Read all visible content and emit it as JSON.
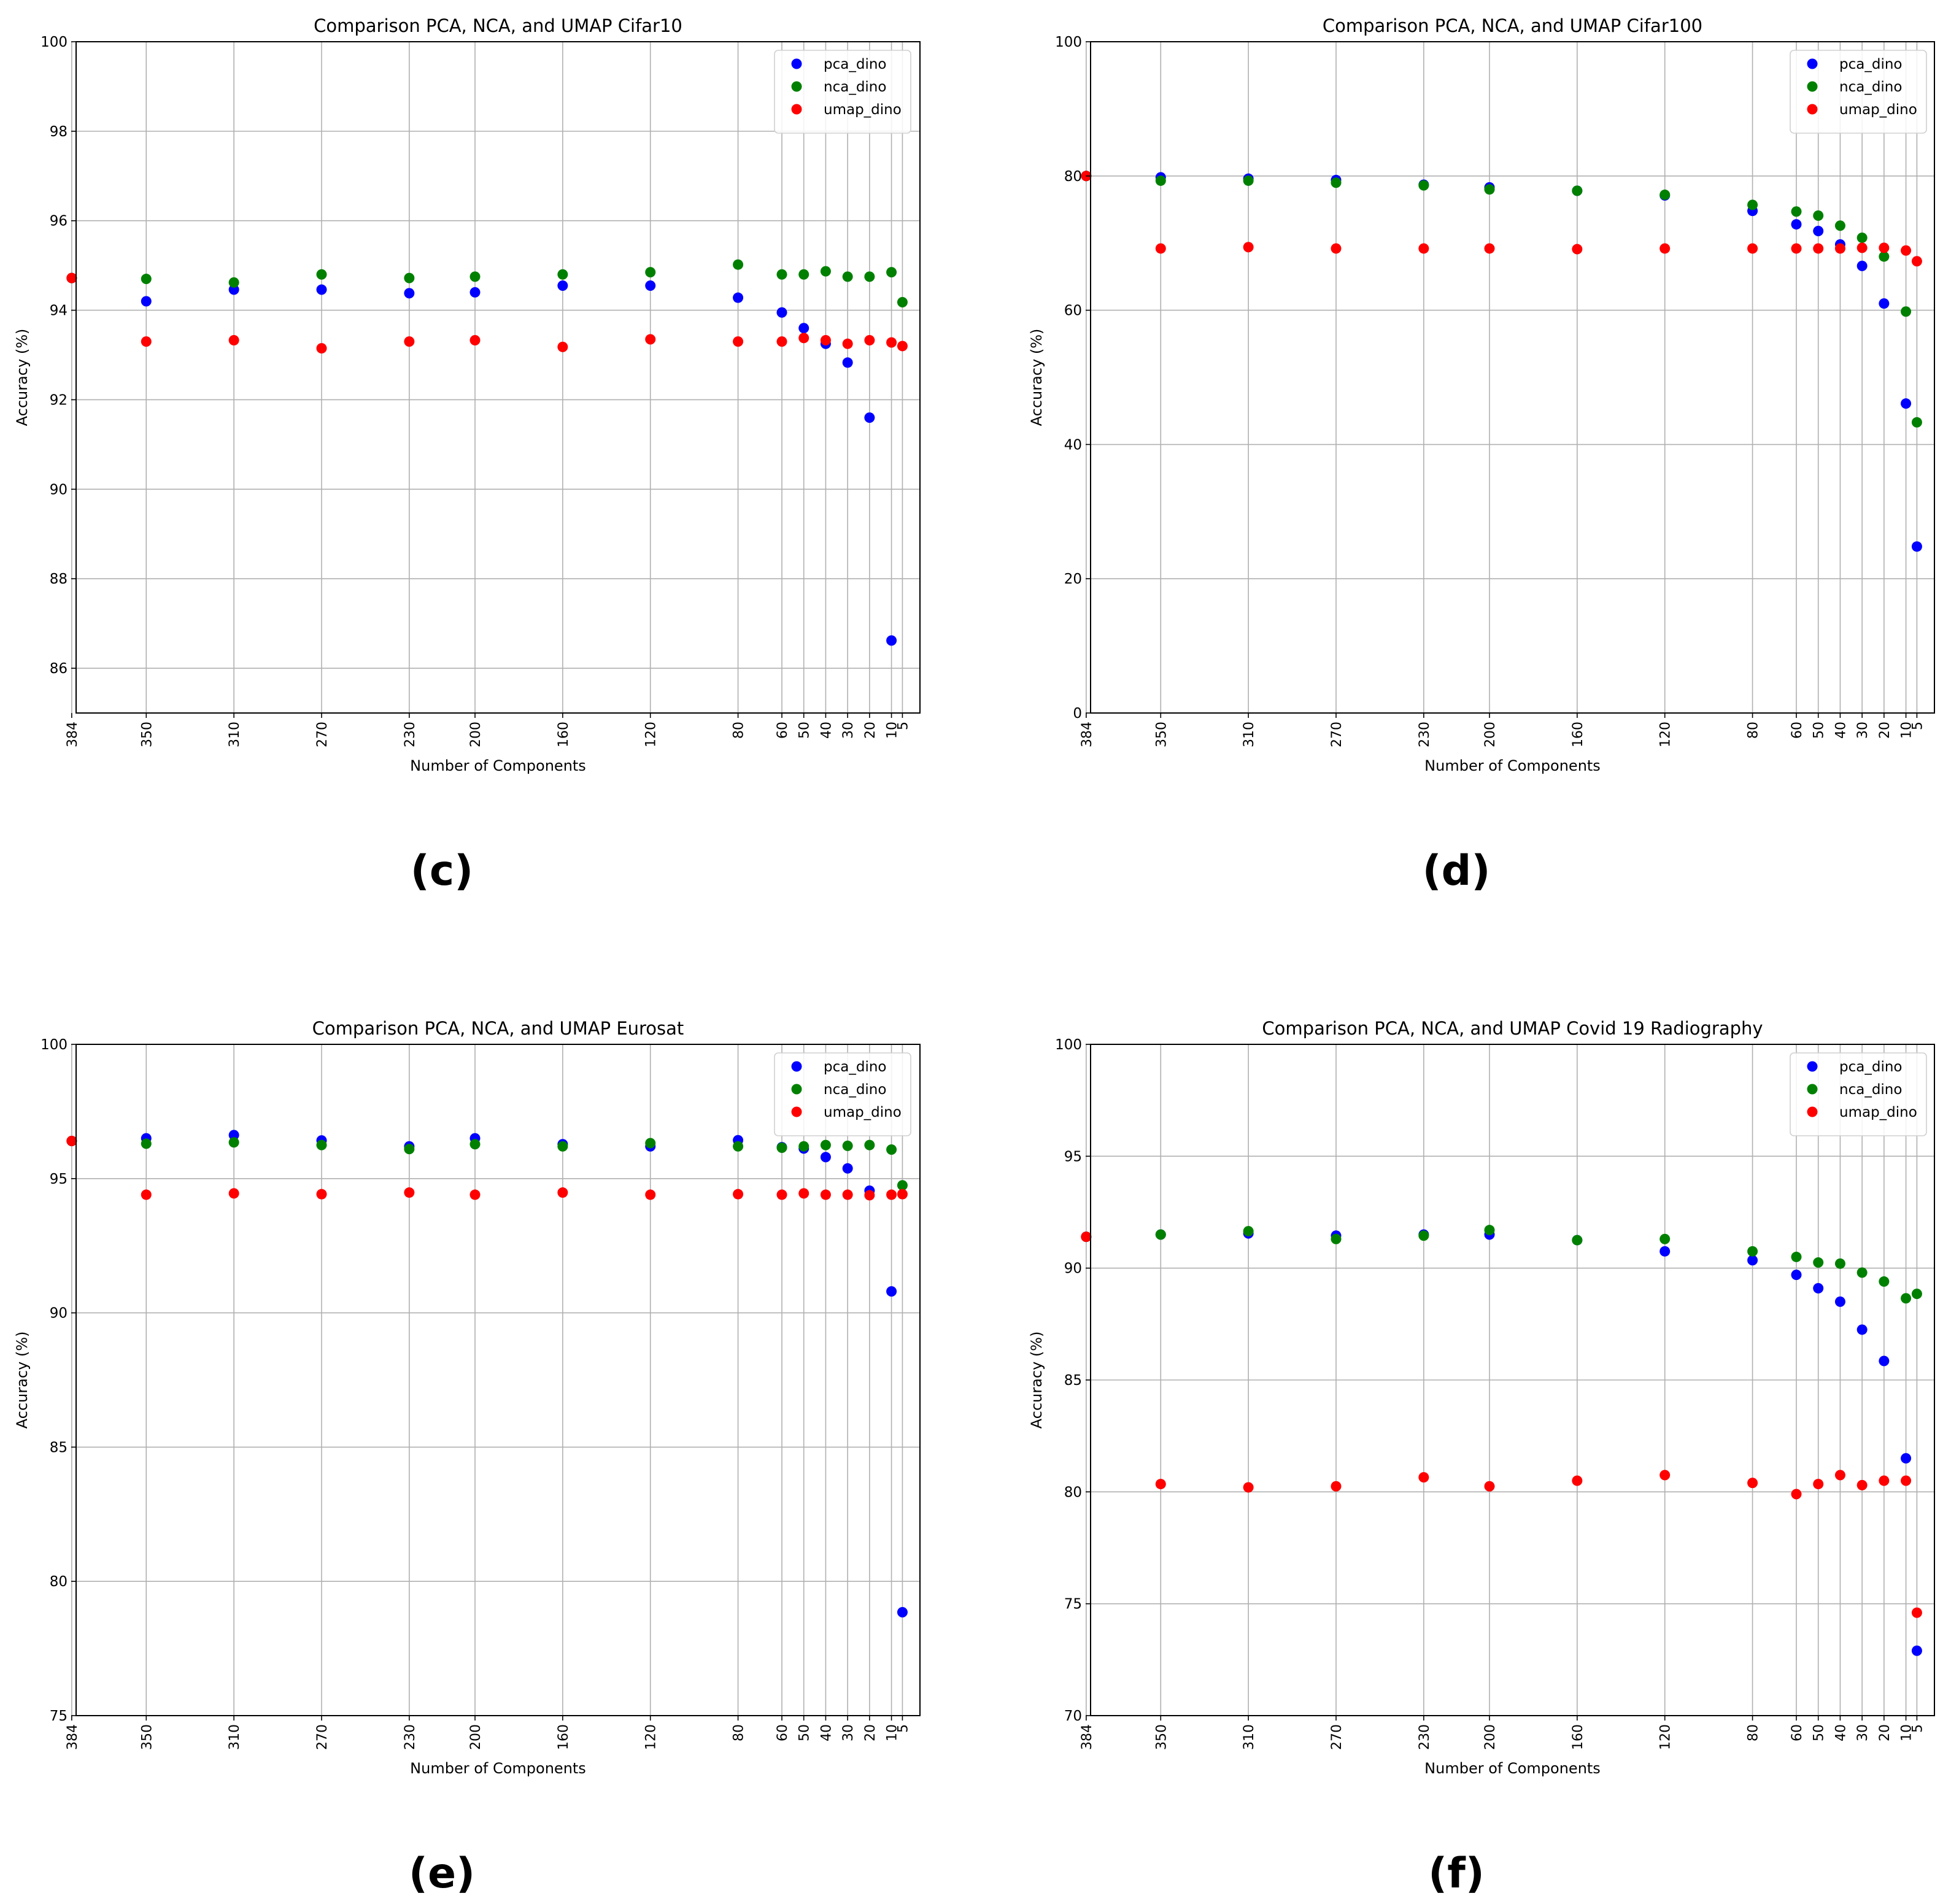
{
  "chart_data": [
    {
      "type": "scatter",
      "panel_label": "(c)",
      "title": "Comparison PCA, NCA, and UMAP Cifar10",
      "xlabel": "Number of Components",
      "ylabel": "Accuracy (%)",
      "ylim": [
        85,
        100
      ],
      "yticks": [
        86,
        88,
        90,
        92,
        94,
        96,
        98,
        100
      ],
      "x": [
        384,
        350,
        310,
        270,
        230,
        200,
        160,
        120,
        80,
        60,
        50,
        40,
        30,
        20,
        10,
        5
      ],
      "xtick_labels": [
        "384",
        "350",
        "310",
        "270",
        "230",
        "200",
        "160",
        "120",
        "80",
        "60",
        "50",
        "40",
        "30",
        "20",
        "10",
        "5"
      ],
      "legend_position": "top-right",
      "grid": true,
      "series": [
        {
          "name": "pca_dino",
          "color": "#0000ff",
          "values": [
            94.72,
            94.2,
            94.46,
            94.46,
            94.38,
            94.4,
            94.55,
            94.55,
            94.28,
            93.95,
            93.6,
            93.25,
            92.83,
            91.6,
            86.62,
            null
          ]
        },
        {
          "name": "nca_dino",
          "color": "#008000",
          "values": [
            94.72,
            94.7,
            94.62,
            94.8,
            94.72,
            94.75,
            94.8,
            94.85,
            95.02,
            94.8,
            94.8,
            94.87,
            94.75,
            94.75,
            94.85,
            94.18
          ]
        },
        {
          "name": "umap_dino",
          "color": "#ff0000",
          "values": [
            94.72,
            93.3,
            93.33,
            93.15,
            93.3,
            93.33,
            93.18,
            93.35,
            93.3,
            93.3,
            93.38,
            93.33,
            93.25,
            93.33,
            93.28,
            93.2
          ]
        }
      ]
    },
    {
      "type": "scatter",
      "panel_label": "(d)",
      "title": "Comparison PCA, NCA, and UMAP Cifar100",
      "xlabel": "Number of Components",
      "ylabel": "Accuracy (%)",
      "ylim": [
        0,
        100
      ],
      "yticks": [
        0,
        20,
        40,
        60,
        80,
        100
      ],
      "x": [
        384,
        350,
        310,
        270,
        230,
        200,
        160,
        120,
        80,
        60,
        50,
        40,
        30,
        20,
        10,
        5
      ],
      "xtick_labels": [
        "384",
        "350",
        "310",
        "270",
        "230",
        "200",
        "160",
        "120",
        "80",
        "60",
        "50",
        "40",
        "30",
        "20",
        "10",
        "5"
      ],
      "legend_position": "top-right",
      "grid": true,
      "series": [
        {
          "name": "pca_dino",
          "color": "#0000ff",
          "values": [
            80.0,
            79.8,
            79.6,
            79.4,
            78.7,
            78.3,
            77.8,
            77.1,
            74.8,
            72.8,
            71.8,
            69.8,
            66.6,
            61.0,
            46.1,
            24.8
          ]
        },
        {
          "name": "nca_dino",
          "color": "#008000",
          "values": [
            80.0,
            79.3,
            79.3,
            79.0,
            78.6,
            78.0,
            77.8,
            77.2,
            75.7,
            74.7,
            74.1,
            72.6,
            70.8,
            68.0,
            59.8,
            43.3
          ]
        },
        {
          "name": "umap_dino",
          "color": "#ff0000",
          "values": [
            80.0,
            69.2,
            69.4,
            69.2,
            69.2,
            69.2,
            69.1,
            69.2,
            69.2,
            69.2,
            69.2,
            69.2,
            69.3,
            69.3,
            68.9,
            67.3
          ]
        }
      ]
    },
    {
      "type": "scatter",
      "panel_label": "(e)",
      "title": "Comparison PCA, NCA, and UMAP Eurosat",
      "xlabel": "Number of Components",
      "ylabel": "Accuracy (%)",
      "ylim": [
        75,
        100
      ],
      "yticks": [
        75,
        80,
        85,
        90,
        95,
        100
      ],
      "x": [
        384,
        350,
        310,
        270,
        230,
        200,
        160,
        120,
        80,
        60,
        50,
        40,
        30,
        20,
        10,
        5
      ],
      "xtick_labels": [
        "384",
        "350",
        "310",
        "270",
        "230",
        "200",
        "160",
        "120",
        "80",
        "60",
        "50",
        "40",
        "30",
        "20",
        "10",
        "5"
      ],
      "legend_position": "top-right",
      "grid": true,
      "series": [
        {
          "name": "pca_dino",
          "color": "#0000ff",
          "values": [
            96.4,
            96.5,
            96.62,
            96.42,
            96.2,
            96.5,
            96.28,
            96.2,
            96.43,
            96.17,
            96.12,
            95.8,
            95.38,
            94.55,
            90.8,
            78.85
          ]
        },
        {
          "name": "nca_dino",
          "color": "#008000",
          "values": [
            96.4,
            96.3,
            96.35,
            96.25,
            96.1,
            96.28,
            96.2,
            96.32,
            96.2,
            96.15,
            96.2,
            96.25,
            96.22,
            96.25,
            96.08,
            94.75
          ]
        },
        {
          "name": "umap_dino",
          "color": "#ff0000",
          "values": [
            96.4,
            94.4,
            94.45,
            94.42,
            94.48,
            94.4,
            94.48,
            94.4,
            94.42,
            94.4,
            94.45,
            94.4,
            94.4,
            94.38,
            94.4,
            94.42
          ]
        }
      ]
    },
    {
      "type": "scatter",
      "panel_label": "(f)",
      "title": "Comparison PCA, NCA, and UMAP Covid 19 Radiography",
      "xlabel": "Number of Components",
      "ylabel": "Accuracy (%)",
      "ylim": [
        70,
        100
      ],
      "yticks": [
        70,
        75,
        80,
        85,
        90,
        95,
        100
      ],
      "x": [
        384,
        350,
        310,
        270,
        230,
        200,
        160,
        120,
        80,
        60,
        50,
        40,
        30,
        20,
        10,
        5
      ],
      "xtick_labels": [
        "384",
        "350",
        "310",
        "270",
        "230",
        "200",
        "160",
        "120",
        "80",
        "60",
        "50",
        "40",
        "30",
        "20",
        "10",
        "5"
      ],
      "legend_position": "top-right",
      "grid": true,
      "series": [
        {
          "name": "pca_dino",
          "color": "#0000ff",
          "values": [
            91.4,
            91.5,
            91.55,
            91.45,
            91.5,
            91.5,
            91.25,
            90.75,
            90.35,
            89.7,
            89.1,
            88.5,
            87.25,
            85.85,
            81.5,
            72.9
          ]
        },
        {
          "name": "nca_dino",
          "color": "#008000",
          "values": [
            91.4,
            91.5,
            91.65,
            91.3,
            91.45,
            91.7,
            91.25,
            91.3,
            90.75,
            90.5,
            90.25,
            90.2,
            89.8,
            89.4,
            88.65,
            88.85
          ]
        },
        {
          "name": "umap_dino",
          "color": "#ff0000",
          "values": [
            91.4,
            80.35,
            80.2,
            80.25,
            80.65,
            80.25,
            80.5,
            80.75,
            80.4,
            79.9,
            80.35,
            80.75,
            80.3,
            80.5,
            80.5,
            74.6
          ]
        }
      ]
    }
  ]
}
